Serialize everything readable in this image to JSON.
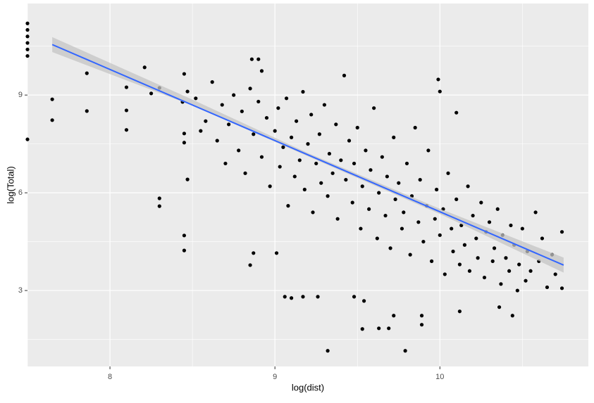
{
  "chart_data": {
    "type": "scatter",
    "x_label": "log(dist)",
    "y_label": "log(Total)",
    "xlim": [
      7.5,
      10.9
    ],
    "ylim": [
      0.67,
      11.81
    ],
    "xticks": [
      8,
      9,
      10
    ],
    "yticks": [
      3,
      6,
      9
    ],
    "x_minor_grid": [
      7.5,
      8.5,
      9.5,
      10.5
    ],
    "y_minor_grid": [
      1.5,
      4.5,
      7.5,
      10.5
    ],
    "grid": true,
    "color": "#000000",
    "x": [
      7.5,
      7.5,
      7.5,
      7.5,
      7.5,
      7.5,
      7.5,
      7.65,
      7.65,
      7.86,
      7.86,
      8.1,
      8.1,
      8.1,
      8.21,
      8.25,
      8.3,
      8.3,
      8.3,
      8.45,
      8.45,
      8.47,
      8.45,
      8.47,
      8.44,
      8.45,
      8.45,
      8.86,
      8.9,
      8.92,
      8.87,
      8.85,
      9.01,
      9.06,
      9.1,
      9.17,
      9.26,
      9.32,
      9.53,
      9.63,
      9.69,
      9.72,
      9.79,
      9.89,
      9.89,
      9.48,
      9.54,
      10.12,
      10.36,
      10.44,
      10.74,
      10.74,
      9.99,
      10.1,
      10.0,
      8.52,
      8.55,
      8.58,
      8.62,
      8.65,
      8.68,
      8.7,
      8.72,
      8.75,
      8.78,
      8.8,
      8.82,
      8.85,
      8.87,
      8.9,
      8.92,
      8.95,
      8.97,
      9.0,
      9.02,
      9.03,
      9.05,
      9.07,
      9.08,
      9.1,
      9.12,
      9.13,
      9.15,
      9.17,
      9.18,
      9.2,
      9.22,
      9.23,
      9.25,
      9.27,
      9.28,
      9.3,
      9.32,
      9.33,
      9.35,
      9.37,
      9.38,
      9.4,
      9.42,
      9.43,
      9.45,
      9.47,
      9.48,
      9.5,
      9.52,
      9.53,
      9.55,
      9.57,
      9.58,
      9.6,
      9.62,
      9.63,
      9.65,
      9.67,
      9.68,
      9.7,
      9.72,
      9.73,
      9.75,
      9.77,
      9.78,
      9.8,
      9.82,
      9.83,
      9.85,
      9.87,
      9.88,
      9.9,
      9.92,
      9.93,
      9.95,
      9.97,
      9.98,
      10.0,
      10.02,
      10.03,
      10.05,
      10.07,
      10.08,
      10.1,
      10.12,
      10.13,
      10.15,
      10.17,
      10.18,
      10.2,
      10.22,
      10.23,
      10.25,
      10.27,
      10.28,
      10.3,
      10.32,
      10.33,
      10.35,
      10.37,
      10.38,
      10.4,
      10.42,
      10.43,
      10.45,
      10.47,
      10.48,
      10.5,
      10.52,
      10.53,
      10.55,
      10.58,
      10.6,
      10.62,
      10.65,
      10.68,
      10.7
    ],
    "values": [
      11.2,
      11.0,
      10.8,
      10.6,
      10.4,
      10.2,
      7.64,
      8.87,
      8.23,
      9.67,
      8.51,
      9.24,
      8.53,
      7.93,
      9.85,
      9.05,
      9.22,
      5.83,
      5.59,
      4.69,
      4.23,
      6.41,
      9.65,
      9.11,
      8.79,
      7.82,
      7.54,
      10.1,
      10.1,
      9.74,
      4.15,
      3.78,
      4.15,
      2.81,
      2.77,
      2.81,
      2.81,
      1.15,
      1.82,
      1.84,
      1.84,
      2.23,
      1.15,
      2.23,
      1.95,
      2.81,
      2.68,
      2.36,
      2.49,
      2.23,
      3.07,
      4.8,
      9.48,
      8.46,
      9.11,
      8.9,
      7.9,
      8.2,
      9.4,
      7.6,
      8.7,
      6.9,
      8.1,
      9.0,
      7.3,
      8.5,
      6.6,
      9.2,
      7.8,
      8.8,
      7.1,
      8.3,
      6.2,
      7.9,
      8.6,
      6.8,
      7.4,
      8.9,
      5.6,
      7.7,
      6.5,
      8.2,
      7.0,
      9.1,
      6.1,
      7.5,
      8.4,
      5.4,
      6.9,
      7.8,
      6.3,
      8.7,
      5.9,
      7.2,
      6.6,
      8.1,
      5.2,
      7.0,
      9.6,
      6.4,
      7.6,
      5.7,
      6.9,
      8.0,
      4.9,
      6.2,
      7.3,
      5.5,
      6.7,
      8.6,
      4.6,
      6.0,
      7.1,
      5.3,
      6.5,
      4.3,
      7.7,
      5.8,
      6.3,
      4.9,
      5.4,
      6.9,
      4.1,
      5.9,
      8.0,
      5.1,
      6.4,
      4.5,
      5.6,
      7.3,
      3.9,
      5.2,
      6.1,
      4.7,
      5.5,
      3.5,
      6.6,
      4.9,
      4.2,
      5.8,
      3.8,
      5.0,
      4.4,
      6.2,
      3.6,
      5.3,
      4.6,
      4.0,
      5.7,
      3.4,
      4.8,
      5.1,
      3.9,
      4.3,
      5.5,
      3.2,
      4.7,
      4.0,
      3.6,
      5.0,
      4.4,
      3.0,
      3.8,
      4.9,
      3.3,
      4.2,
      3.6,
      5.4,
      3.9,
      4.6,
      3.1,
      4.1,
      3.5
    ],
    "fit": {
      "color": "#3366ff",
      "x": [
        7.65,
        10.75
      ],
      "values": [
        10.55,
        3.78
      ]
    },
    "band": {
      "color": "#c4c4c4",
      "x": [
        7.65,
        8.5,
        9.2,
        10.0,
        10.75
      ],
      "lower": [
        10.32,
        8.68,
        7.12,
        5.35,
        3.55
      ],
      "upper": [
        10.78,
        8.86,
        7.22,
        5.51,
        4.01
      ]
    }
  }
}
